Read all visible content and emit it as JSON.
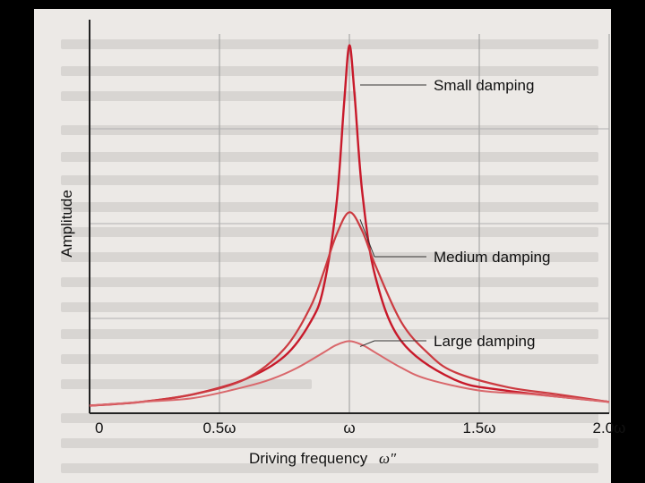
{
  "chart_data": {
    "type": "line",
    "xlabel": "Driving frequency",
    "xlabel_symbol": "ω″",
    "ylabel": "Amplitude",
    "x_ticks": [
      {
        "value": 0,
        "label": "0"
      },
      {
        "value": 0.5,
        "label": "0.5ω"
      },
      {
        "value": 1.0,
        "label": "ω"
      },
      {
        "value": 1.5,
        "label": "1.5ω"
      },
      {
        "value": 2.0,
        "label": "2.0ω"
      }
    ],
    "xlim": [
      0,
      2.0
    ],
    "ylim": [
      0,
      1.0
    ],
    "grid": true,
    "series": [
      {
        "name": "Small damping",
        "color": "#c8192a",
        "peak": 0.97,
        "x": [
          0,
          0.2,
          0.4,
          0.6,
          0.75,
          0.85,
          0.9,
          0.95,
          0.98,
          1.0,
          1.02,
          1.05,
          1.1,
          1.2,
          1.4,
          1.6,
          2.0
        ],
        "y": [
          0.02,
          0.03,
          0.05,
          0.09,
          0.15,
          0.24,
          0.33,
          0.55,
          0.82,
          0.97,
          0.84,
          0.58,
          0.36,
          0.19,
          0.09,
          0.06,
          0.03
        ]
      },
      {
        "name": "Medium damping",
        "color": "#cc3a40",
        "peak": 0.53,
        "x": [
          0,
          0.2,
          0.4,
          0.6,
          0.75,
          0.85,
          0.9,
          0.95,
          1.0,
          1.05,
          1.1,
          1.2,
          1.3,
          1.4,
          1.6,
          1.8,
          2.0
        ],
        "y": [
          0.02,
          0.03,
          0.05,
          0.09,
          0.17,
          0.28,
          0.37,
          0.47,
          0.53,
          0.48,
          0.39,
          0.24,
          0.16,
          0.11,
          0.07,
          0.05,
          0.03
        ]
      },
      {
        "name": "Large damping",
        "color": "#d9676b",
        "peak": 0.19,
        "x": [
          0,
          0.2,
          0.4,
          0.6,
          0.7,
          0.8,
          0.9,
          0.95,
          1.0,
          1.05,
          1.1,
          1.2,
          1.3,
          1.5,
          1.7,
          2.0
        ],
        "y": [
          0.02,
          0.03,
          0.04,
          0.07,
          0.09,
          0.12,
          0.16,
          0.18,
          0.19,
          0.18,
          0.16,
          0.12,
          0.09,
          0.06,
          0.05,
          0.03
        ]
      }
    ]
  }
}
